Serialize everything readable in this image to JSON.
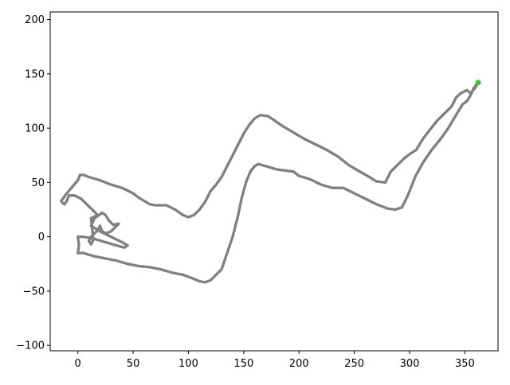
{
  "chart_data": {
    "type": "scatter",
    "title": "",
    "xlabel": "",
    "ylabel": "",
    "xlim": [
      -25,
      380
    ],
    "ylim": [
      -105,
      207
    ],
    "xticks": [
      0,
      50,
      100,
      150,
      200,
      250,
      300,
      350
    ],
    "yticks": [
      -100,
      -50,
      0,
      50,
      100,
      150,
      200
    ],
    "grid": false,
    "colors": {
      "path": "#808080",
      "end": "#33cc33",
      "axes": "#000000"
    },
    "series": [
      {
        "style": "dotted-path",
        "points": [
          [
            -15,
            33
          ],
          [
            -10,
            40
          ],
          [
            -5,
            46
          ],
          [
            0,
            52
          ],
          [
            2,
            57
          ],
          [
            5,
            57
          ],
          [
            10,
            55
          ],
          [
            20,
            52
          ],
          [
            30,
            48
          ],
          [
            40,
            45
          ],
          [
            50,
            40
          ],
          [
            55,
            36
          ],
          [
            60,
            33
          ],
          [
            65,
            30
          ],
          [
            70,
            29
          ],
          [
            80,
            29
          ],
          [
            88,
            25
          ],
          [
            95,
            20
          ],
          [
            100,
            18
          ],
          [
            105,
            20
          ],
          [
            110,
            25
          ],
          [
            115,
            32
          ],
          [
            120,
            42
          ],
          [
            125,
            48
          ],
          [
            130,
            55
          ],
          [
            135,
            65
          ],
          [
            140,
            75
          ],
          [
            145,
            85
          ],
          [
            150,
            95
          ],
          [
            155,
            103
          ],
          [
            160,
            109
          ],
          [
            165,
            112
          ],
          [
            172,
            111
          ],
          [
            178,
            107
          ],
          [
            185,
            102
          ],
          [
            195,
            96
          ],
          [
            205,
            90
          ],
          [
            215,
            85
          ],
          [
            225,
            80
          ],
          [
            235,
            74
          ],
          [
            245,
            66
          ],
          [
            255,
            60
          ],
          [
            262,
            56
          ],
          [
            270,
            51
          ],
          [
            278,
            50
          ],
          [
            283,
            60
          ],
          [
            290,
            67
          ],
          [
            296,
            73
          ],
          [
            300,
            76
          ],
          [
            306,
            80
          ],
          [
            312,
            90
          ],
          [
            318,
            98
          ],
          [
            325,
            107
          ],
          [
            330,
            112
          ],
          [
            338,
            120
          ],
          [
            342,
            128
          ],
          [
            346,
            132
          ],
          [
            352,
            135
          ],
          [
            355,
            132
          ],
          [
            360,
            138
          ],
          [
            362,
            142
          ]
        ]
      },
      {
        "style": "dotted-path",
        "points": [
          [
            362,
            142
          ],
          [
            358,
            137
          ],
          [
            355,
            130
          ],
          [
            352,
            125
          ],
          [
            348,
            122
          ],
          [
            342,
            112
          ],
          [
            335,
            100
          ],
          [
            328,
            90
          ],
          [
            320,
            80
          ],
          [
            312,
            68
          ],
          [
            305,
            55
          ],
          [
            300,
            42
          ],
          [
            297,
            35
          ],
          [
            293,
            27
          ],
          [
            287,
            25
          ],
          [
            280,
            26
          ],
          [
            270,
            30
          ],
          [
            260,
            35
          ],
          [
            250,
            40
          ],
          [
            240,
            45
          ],
          [
            230,
            45
          ],
          [
            220,
            48
          ],
          [
            210,
            53
          ],
          [
            200,
            56
          ],
          [
            195,
            60
          ],
          [
            180,
            62
          ],
          [
            170,
            65
          ],
          [
            163,
            67
          ],
          [
            160,
            65
          ],
          [
            156,
            60
          ],
          [
            152,
            50
          ],
          [
            148,
            35
          ],
          [
            145,
            20
          ],
          [
            140,
            0
          ],
          [
            135,
            -15
          ],
          [
            130,
            -30
          ],
          [
            125,
            -35
          ],
          [
            120,
            -40
          ],
          [
            115,
            -42
          ],
          [
            110,
            -41
          ],
          [
            103,
            -38
          ],
          [
            95,
            -35
          ],
          [
            85,
            -33
          ],
          [
            75,
            -30
          ],
          [
            65,
            -28
          ],
          [
            55,
            -27
          ],
          [
            45,
            -25
          ],
          [
            35,
            -22
          ],
          [
            25,
            -20
          ],
          [
            15,
            -18
          ],
          [
            5,
            -15
          ],
          [
            0,
            -15
          ],
          [
            1,
            -8
          ],
          [
            0,
            0
          ],
          [
            5,
            0
          ],
          [
            15,
            -2
          ],
          [
            25,
            -5
          ],
          [
            35,
            -8
          ],
          [
            42,
            -10
          ],
          [
            45,
            -8
          ],
          [
            40,
            -5
          ],
          [
            30,
            0
          ],
          [
            20,
            5
          ],
          [
            12,
            10
          ],
          [
            15,
            17
          ],
          [
            22,
            22
          ],
          [
            25,
            20
          ],
          [
            28,
            15
          ],
          [
            32,
            11
          ],
          [
            37,
            12
          ],
          [
            30,
            5
          ],
          [
            25,
            3
          ],
          [
            22,
            5
          ],
          [
            20,
            10
          ],
          [
            18,
            6
          ],
          [
            15,
            3
          ],
          [
            12,
            0
          ],
          [
            10,
            -4
          ],
          [
            12,
            -7
          ],
          [
            14,
            -3
          ],
          [
            12,
            17
          ],
          [
            18,
            20
          ],
          [
            8,
            30
          ],
          [
            3,
            35
          ],
          [
            -3,
            38
          ],
          [
            -8,
            38
          ],
          [
            -10,
            33
          ],
          [
            -12,
            30
          ],
          [
            -15,
            32
          ]
        ]
      }
    ],
    "end_marker": {
      "x": 362,
      "y": 142
    }
  }
}
